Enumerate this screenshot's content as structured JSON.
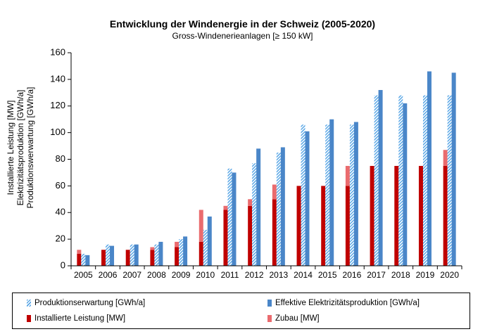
{
  "chart_data": {
    "type": "bar",
    "title": "Entwicklung der Windenergie in der Schweiz (2005-2020)",
    "subtitle": "Gross-Windenerieanlagen [≥ 150 kW]",
    "ylabel": [
      "Installierte Leistung [MW]",
      "Elektrizitätsproduktion [GWh/a]",
      "Produktionswerwartung [GWh/a]"
    ],
    "ylim": [
      0,
      160
    ],
    "yticks": [
      0,
      20,
      40,
      60,
      80,
      100,
      120,
      140,
      160
    ],
    "categories": [
      "2005",
      "2006",
      "2007",
      "2008",
      "2009",
      "2010",
      "2011",
      "2012",
      "2013",
      "2014",
      "2015",
      "2016",
      "2017",
      "2018",
      "2019",
      "2020"
    ],
    "series": [
      {
        "name": "Installierte Leistung [MW]",
        "color": "#c00000",
        "values": [
          9,
          12,
          12,
          12,
          14,
          18,
          42,
          45,
          50,
          60,
          60,
          60,
          75,
          75,
          75,
          75
        ]
      },
      {
        "name": "Zubau [MW]",
        "color": "#ea6b6e",
        "values": [
          3,
          0,
          0,
          2,
          4,
          24,
          3,
          5,
          11,
          0,
          0,
          15,
          0,
          0,
          0,
          12
        ]
      },
      {
        "name": "Produktionserwartung [GWh/a]",
        "color": "#5aa7e6",
        "values": [
          9,
          16,
          16,
          16,
          20,
          27,
          73,
          77,
          85,
          106,
          106,
          106,
          128,
          128,
          128,
          128
        ]
      },
      {
        "name": "Effektive Elektrizitätsproduktion [GWh/a]",
        "color": "#4a86c8",
        "values": [
          8,
          15,
          16,
          18,
          22,
          37,
          70,
          88,
          89,
          101,
          110,
          108,
          132,
          122,
          146,
          145
        ]
      }
    ],
    "legend_position": "bottom",
    "grid": false
  }
}
